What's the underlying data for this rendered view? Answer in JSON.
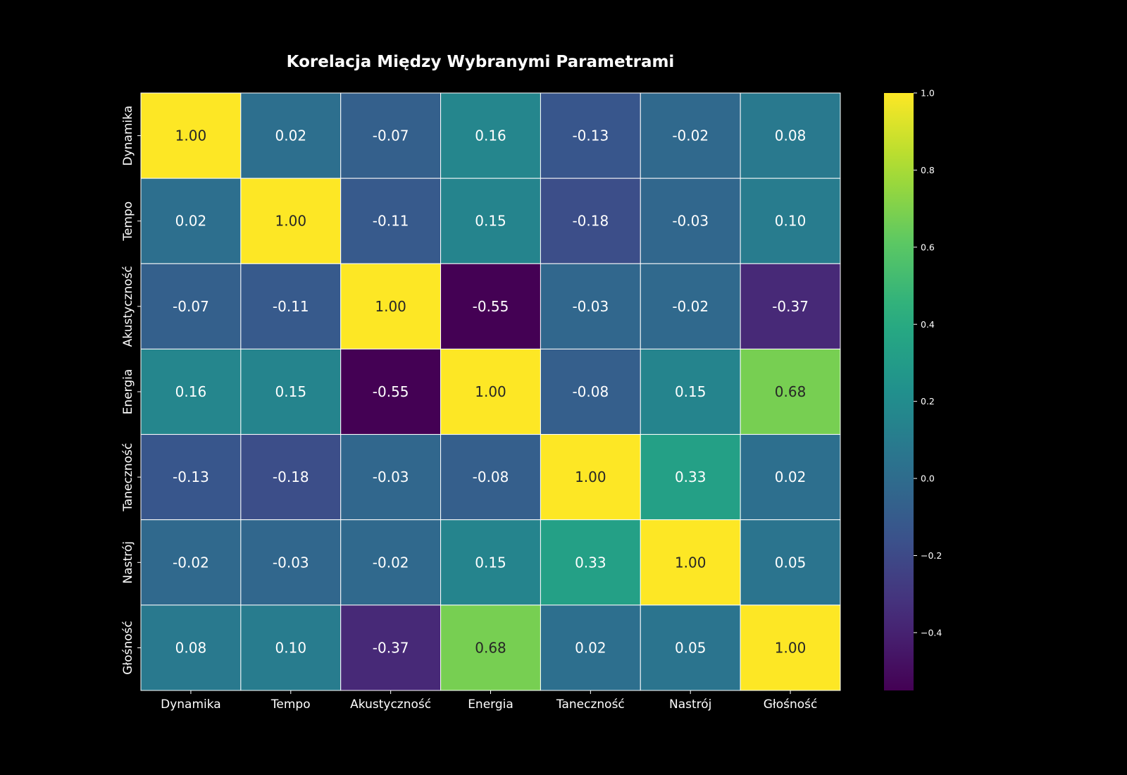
{
  "chart_data": {
    "type": "heatmap",
    "title": "Korelacja Między Wybranymi Parametrami",
    "x_labels": [
      "Dynamika",
      "Tempo",
      "Akustyczność",
      "Energia",
      "Taneczność",
      "Nastrój",
      "Głośność"
    ],
    "y_labels": [
      "Dynamika",
      "Tempo",
      "Akustyczność",
      "Energia",
      "Taneczność",
      "Nastrój",
      "Głośność"
    ],
    "values": [
      [
        1.0,
        0.02,
        -0.07,
        0.16,
        -0.13,
        -0.02,
        0.08
      ],
      [
        0.02,
        1.0,
        -0.11,
        0.15,
        -0.18,
        -0.03,
        0.1
      ],
      [
        -0.07,
        -0.11,
        1.0,
        -0.55,
        -0.03,
        -0.02,
        -0.37
      ],
      [
        0.16,
        0.15,
        -0.55,
        1.0,
        -0.08,
        0.15,
        0.68
      ],
      [
        -0.13,
        -0.18,
        -0.03,
        -0.08,
        1.0,
        0.33,
        0.02
      ],
      [
        -0.02,
        -0.03,
        -0.02,
        0.15,
        0.33,
        1.0,
        0.05
      ],
      [
        0.08,
        0.1,
        -0.37,
        0.68,
        0.02,
        0.05,
        1.0
      ]
    ],
    "annotation_format": "0.00",
    "colormap": "viridis",
    "vmin": -0.55,
    "vmax": 1.0,
    "colorbar_ticks": [
      {
        "value": 1.0,
        "label": "1.0"
      },
      {
        "value": 0.8,
        "label": "0.8"
      },
      {
        "value": 0.6,
        "label": "0.6"
      },
      {
        "value": 0.4,
        "label": "0.4"
      },
      {
        "value": 0.2,
        "label": "0.2"
      },
      {
        "value": 0.0,
        "label": "0.0"
      },
      {
        "value": -0.2,
        "label": "−0.2"
      },
      {
        "value": -0.4,
        "label": "−0.4"
      }
    ],
    "cell_border_color": "#ffffff",
    "background_color": "#000000"
  }
}
